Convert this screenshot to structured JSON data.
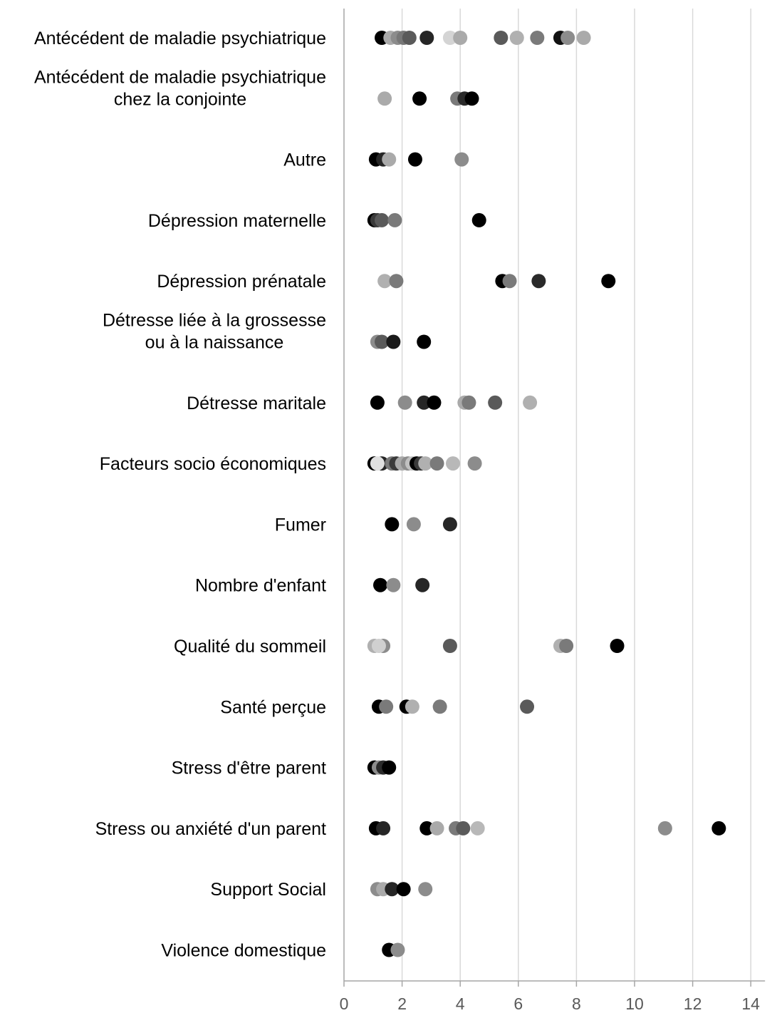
{
  "chart_data": {
    "type": "scatter",
    "orientation": "horizontal-categories",
    "xlim": [
      0,
      14
    ],
    "x_ticks": [
      0,
      2,
      4,
      6,
      8,
      10,
      12,
      14
    ],
    "grid": true,
    "legend": "none",
    "title": "",
    "xlabel": "",
    "ylabel": "",
    "categories": [
      {
        "label": [
          "Antécédent de maladie psychiatrique"
        ],
        "points": [
          {
            "x": 1.3,
            "c": "#000000"
          },
          {
            "x": 1.6,
            "c": "#aaaaaa"
          },
          {
            "x": 1.85,
            "c": "#8c8c8c"
          },
          {
            "x": 2.05,
            "c": "#777777"
          },
          {
            "x": 2.25,
            "c": "#5a5a5a"
          },
          {
            "x": 2.85,
            "c": "#262626"
          },
          {
            "x": 3.65,
            "c": "#d4d4d4"
          },
          {
            "x": 4.0,
            "c": "#aaaaaa"
          },
          {
            "x": 5.4,
            "c": "#5a5a5a"
          },
          {
            "x": 5.95,
            "c": "#b0b0b0"
          },
          {
            "x": 6.65,
            "c": "#7a7a7a"
          },
          {
            "x": 7.45,
            "c": "#111111"
          },
          {
            "x": 7.7,
            "c": "#8c8c8c"
          },
          {
            "x": 8.25,
            "c": "#aaaaaa"
          }
        ]
      },
      {
        "label": [
          "Antécédent de maladie psychiatrique",
          "chez la conjointe"
        ],
        "points": [
          {
            "x": 1.4,
            "c": "#aaaaaa"
          },
          {
            "x": 2.6,
            "c": "#000000"
          },
          {
            "x": 3.9,
            "c": "#7a7a7a"
          },
          {
            "x": 4.15,
            "c": "#2a2a2a"
          },
          {
            "x": 4.4,
            "c": "#000000"
          }
        ]
      },
      {
        "label": [
          "Autre"
        ],
        "points": [
          {
            "x": 1.1,
            "c": "#000000"
          },
          {
            "x": 1.35,
            "c": "#262626"
          },
          {
            "x": 1.55,
            "c": "#aaaaaa"
          },
          {
            "x": 2.45,
            "c": "#000000"
          },
          {
            "x": 4.05,
            "c": "#8c8c8c"
          }
        ]
      },
      {
        "label": [
          "Dépression maternelle"
        ],
        "points": [
          {
            "x": 1.05,
            "c": "#000000"
          },
          {
            "x": 1.15,
            "c": "#3a3a3a"
          },
          {
            "x": 1.3,
            "c": "#5a5a5a"
          },
          {
            "x": 1.75,
            "c": "#7a7a7a"
          },
          {
            "x": 4.65,
            "c": "#000000"
          }
        ]
      },
      {
        "label": [
          "Dépression prénatale"
        ],
        "points": [
          {
            "x": 1.4,
            "c": "#b0b0b0"
          },
          {
            "x": 1.8,
            "c": "#7a7a7a"
          },
          {
            "x": 5.45,
            "c": "#000000"
          },
          {
            "x": 5.7,
            "c": "#7a7a7a"
          },
          {
            "x": 6.7,
            "c": "#2a2a2a"
          },
          {
            "x": 9.1,
            "c": "#000000"
          }
        ]
      },
      {
        "label": [
          "Détresse liée à la grossesse",
          "ou à la naissance"
        ],
        "points": [
          {
            "x": 1.15,
            "c": "#8c8c8c"
          },
          {
            "x": 1.3,
            "c": "#5a5a5a"
          },
          {
            "x": 1.7,
            "c": "#1a1a1a"
          },
          {
            "x": 2.75,
            "c": "#000000"
          }
        ]
      },
      {
        "label": [
          "Détresse maritale"
        ],
        "points": [
          {
            "x": 1.15,
            "c": "#000000"
          },
          {
            "x": 2.1,
            "c": "#8c8c8c"
          },
          {
            "x": 2.75,
            "c": "#262626"
          },
          {
            "x": 3.1,
            "c": "#000000"
          },
          {
            "x": 4.15,
            "c": "#aaaaaa"
          },
          {
            "x": 4.3,
            "c": "#7a7a7a"
          },
          {
            "x": 5.2,
            "c": "#5a5a5a"
          },
          {
            "x": 6.4,
            "c": "#b0b0b0"
          }
        ]
      },
      {
        "label": [
          "Facteurs socio économiques"
        ],
        "points": [
          {
            "x": 1.05,
            "c": "#000000"
          },
          {
            "x": 1.3,
            "c": "#262626"
          },
          {
            "x": 1.65,
            "c": "#7a7a7a"
          },
          {
            "x": 1.8,
            "c": "#3a3a3a"
          },
          {
            "x": 2.0,
            "c": "#aaaaaa"
          },
          {
            "x": 2.2,
            "c": "#8c8c8c"
          },
          {
            "x": 2.35,
            "c": "#c0c0c0"
          },
          {
            "x": 2.5,
            "c": "#000000"
          },
          {
            "x": 2.65,
            "c": "#3a3a3a"
          },
          {
            "x": 2.8,
            "c": "#b0b0b0"
          },
          {
            "x": 3.2,
            "c": "#7a7a7a"
          },
          {
            "x": 3.75,
            "c": "#b8b8b8"
          },
          {
            "x": 4.5,
            "c": "#8c8c8c"
          },
          {
            "x": 1.15,
            "c": "#e0e0e0"
          }
        ]
      },
      {
        "label": [
          "Fumer"
        ],
        "points": [
          {
            "x": 1.65,
            "c": "#000000"
          },
          {
            "x": 2.4,
            "c": "#8c8c8c"
          },
          {
            "x": 3.65,
            "c": "#262626"
          }
        ]
      },
      {
        "label": [
          "Nombre d'enfant"
        ],
        "points": [
          {
            "x": 1.25,
            "c": "#000000"
          },
          {
            "x": 1.7,
            "c": "#8c8c8c"
          },
          {
            "x": 2.7,
            "c": "#262626"
          }
        ]
      },
      {
        "label": [
          "Qualité du sommeil"
        ],
        "points": [
          {
            "x": 1.05,
            "c": "#b0b0b0"
          },
          {
            "x": 1.35,
            "c": "#8c8c8c"
          },
          {
            "x": 1.2,
            "c": "#d0d0d0"
          },
          {
            "x": 3.65,
            "c": "#5a5a5a"
          },
          {
            "x": 7.45,
            "c": "#b0b0b0"
          },
          {
            "x": 7.65,
            "c": "#7a7a7a"
          },
          {
            "x": 9.4,
            "c": "#000000"
          }
        ]
      },
      {
        "label": [
          "Santé perçue"
        ],
        "points": [
          {
            "x": 1.2,
            "c": "#000000"
          },
          {
            "x": 1.45,
            "c": "#7a7a7a"
          },
          {
            "x": 2.15,
            "c": "#000000"
          },
          {
            "x": 2.35,
            "c": "#b0b0b0"
          },
          {
            "x": 3.3,
            "c": "#7a7a7a"
          },
          {
            "x": 6.3,
            "c": "#5a5a5a"
          }
        ]
      },
      {
        "label": [
          "Stress d'être parent"
        ],
        "points": [
          {
            "x": 1.05,
            "c": "#000000"
          },
          {
            "x": 1.2,
            "c": "#8c8c8c"
          },
          {
            "x": 1.35,
            "c": "#2a2a2a"
          },
          {
            "x": 1.55,
            "c": "#000000"
          }
        ]
      },
      {
        "label": [
          "Stress ou anxiété d'un parent"
        ],
        "points": [
          {
            "x": 1.1,
            "c": "#000000"
          },
          {
            "x": 1.35,
            "c": "#262626"
          },
          {
            "x": 2.85,
            "c": "#000000"
          },
          {
            "x": 3.2,
            "c": "#aaaaaa"
          },
          {
            "x": 3.85,
            "c": "#7a7a7a"
          },
          {
            "x": 4.1,
            "c": "#5a5a5a"
          },
          {
            "x": 4.6,
            "c": "#b8b8b8"
          },
          {
            "x": 11.05,
            "c": "#8c8c8c"
          },
          {
            "x": 12.9,
            "c": "#000000"
          }
        ]
      },
      {
        "label": [
          "Support Social"
        ],
        "points": [
          {
            "x": 1.15,
            "c": "#8c8c8c"
          },
          {
            "x": 1.35,
            "c": "#aaaaaa"
          },
          {
            "x": 1.65,
            "c": "#262626"
          },
          {
            "x": 2.05,
            "c": "#000000"
          },
          {
            "x": 2.8,
            "c": "#8c8c8c"
          }
        ]
      },
      {
        "label": [
          "Violence domestique"
        ],
        "points": [
          {
            "x": 1.55,
            "c": "#000000"
          },
          {
            "x": 1.85,
            "c": "#8c8c8c"
          }
        ]
      }
    ]
  }
}
